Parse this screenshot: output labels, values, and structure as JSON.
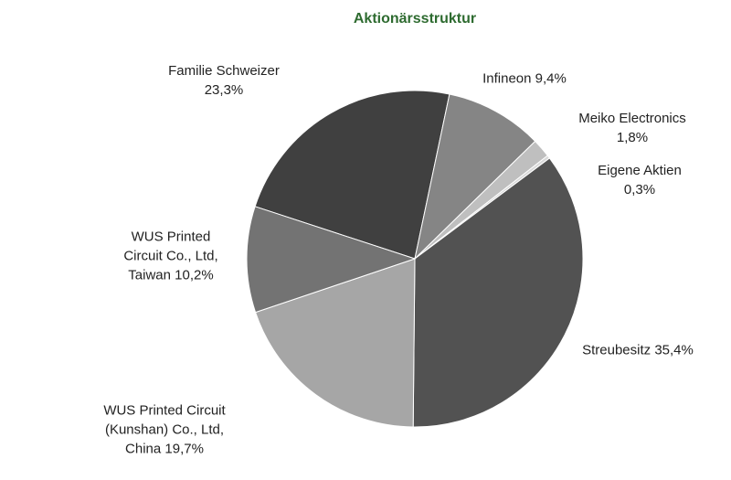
{
  "chart_data": {
    "type": "pie",
    "title": "Aktionärsstruktur",
    "categories": [
      "Familie Schweizer",
      "Infineon",
      "Meiko Electronics",
      "Eigene Aktien",
      "Streubesitz",
      "WUS Printed Circuit (Kunshan) Co., Ltd, China",
      "WUS Printed Circuit Co., Ltd, Taiwan"
    ],
    "values": [
      23.3,
      9.4,
      1.8,
      0.3,
      35.4,
      19.7,
      10.2
    ],
    "value_labels": [
      "23,3%",
      "9,4%",
      "1,8%",
      "0,3%",
      "35,4%",
      "19,7%",
      "10,2%"
    ],
    "colors": [
      "#404040",
      "#858585",
      "#bfbfbf",
      "#d9d9d9",
      "#525252",
      "#a6a6a6",
      "#737373"
    ]
  }
}
